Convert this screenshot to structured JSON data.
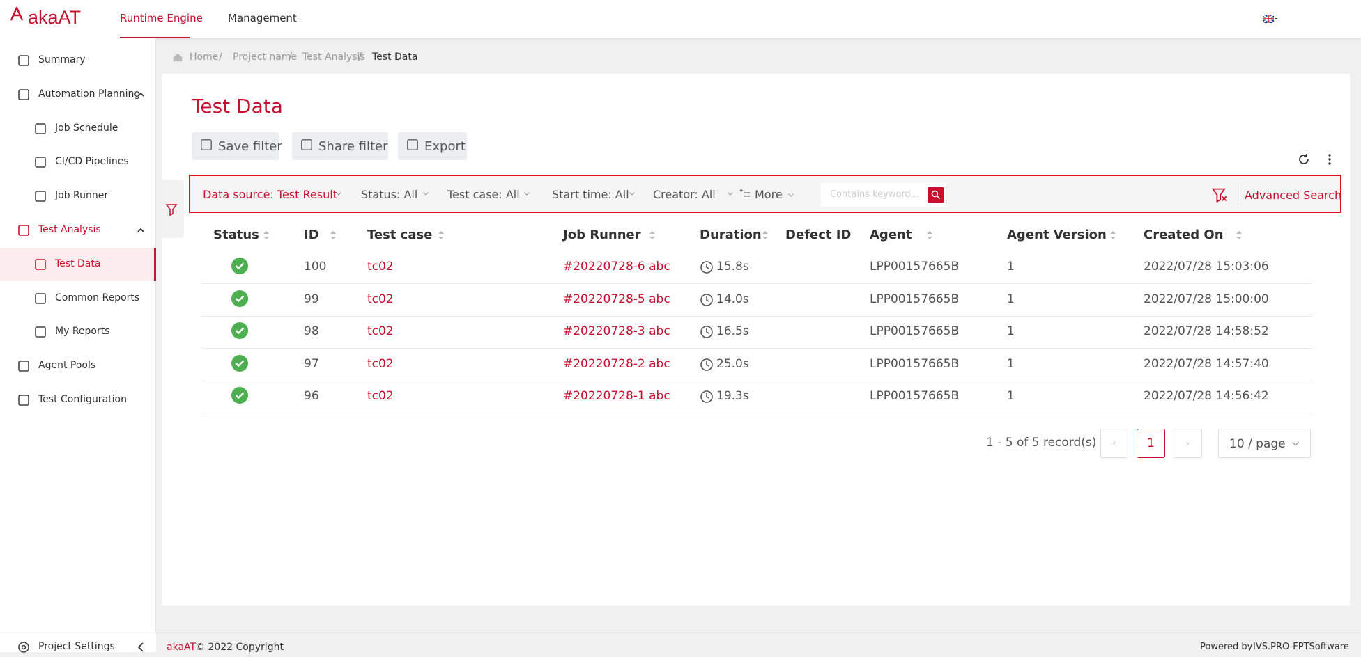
{
  "header": {
    "logo": "akaAT",
    "nav": [
      "Runtime Engine",
      "Management"
    ]
  },
  "sidebar": {
    "items": [
      "Summary",
      "Automation Planning",
      "Job Schedule",
      "CI/CD Pipelines",
      "Job Runner",
      "Test Analysis",
      "Test Data",
      "Common Reports",
      "My Reports",
      "Agent Pools",
      "Test Configuration"
    ],
    "settings": "Project Settings"
  },
  "breadcrumb": [
    "Home",
    "Project name",
    "Test Analysis",
    "Test Data"
  ],
  "page_title": "Test Data",
  "toolbar": [
    "Save filter",
    "Share filter",
    "Export"
  ],
  "filters": {
    "items": [
      "Data source: Test Result",
      "Status: All",
      "Test case: All",
      "Start time: All",
      "Creator: All"
    ],
    "more": "More",
    "search_placeholder": "Contains keyword...",
    "advanced": "Advanced Search"
  },
  "table": {
    "columns": [
      "Status",
      "ID",
      "Test case",
      "Job Runner",
      "Duration",
      "Defect ID",
      "Agent",
      "Agent Version",
      "Created On"
    ],
    "rows": [
      {
        "id": 100,
        "test_case": "tc02",
        "job_runner": "#20220728-6 abc",
        "duration": "15.8s",
        "agent": "LPP00157665B",
        "agent_version": 1,
        "created_on": "2022/07/28 15:03:06"
      },
      {
        "id": 99,
        "test_case": "tc02",
        "job_runner": "#20220728-5 abc",
        "duration": "14.0s",
        "agent": "LPP00157665B",
        "agent_version": 1,
        "created_on": "2022/07/28 15:00:00"
      },
      {
        "id": 98,
        "test_case": "tc02",
        "job_runner": "#20220728-3 abc",
        "duration": "16.5s",
        "agent": "LPP00157665B",
        "agent_version": 1,
        "created_on": "2022/07/28 14:58:52"
      },
      {
        "id": 97,
        "test_case": "tc02",
        "job_runner": "#20220728-2 abc",
        "duration": "25.0s",
        "agent": "LPP00157665B",
        "agent_version": 1,
        "created_on": "2022/07/28 14:57:40"
      },
      {
        "id": 96,
        "test_case": "tc02",
        "job_runner": "#20220728-1 abc",
        "duration": "19.3s",
        "agent": "LPP00157665B",
        "agent_version": 1,
        "created_on": "2022/07/28 14:56:42"
      }
    ]
  },
  "pagination": {
    "summary": "1 - 5 of 5 record(s)",
    "page": 1,
    "page_size": "10 / page"
  },
  "footer": {
    "brand": "akaAT",
    "copyright": "© 2022 Copyright",
    "powered": "Powered by",
    "company": "IVS.PRO-FPTSoftware"
  }
}
